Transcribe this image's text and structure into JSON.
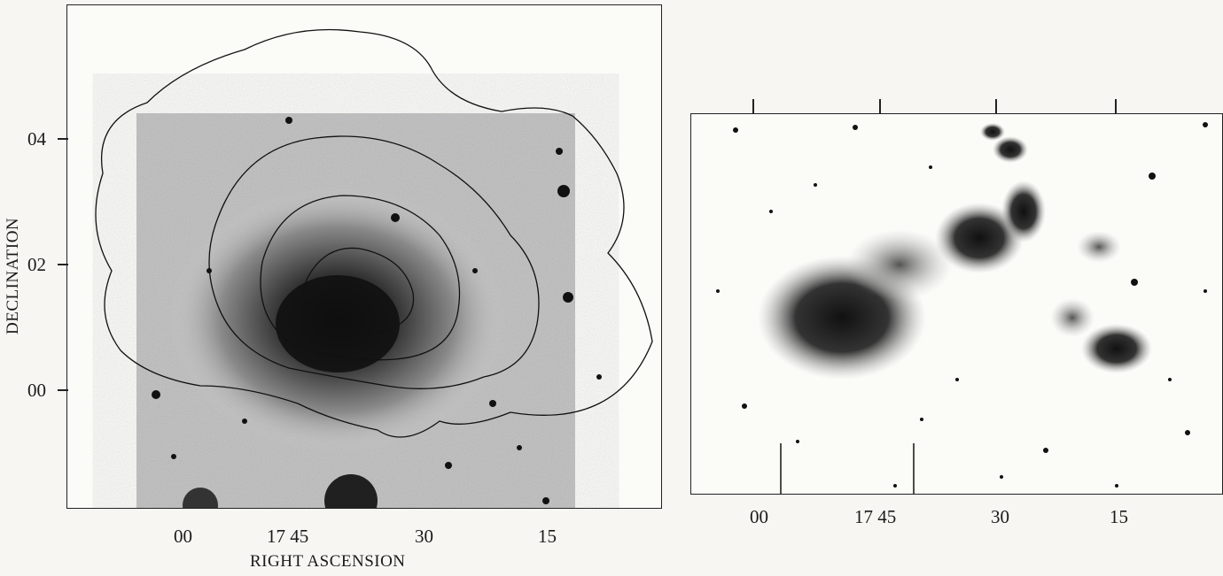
{
  "left_panel": {
    "y_axis_title": "DECLINATION",
    "x_axis_title": "RIGHT ASCENSION",
    "y_ticks": [
      "04",
      "02",
      "00"
    ],
    "x_ticks": [
      "00",
      "17 45",
      "30",
      "15"
    ]
  },
  "right_panel": {
    "x_ticks": [
      "00",
      "17 45",
      "30",
      "15"
    ]
  }
}
